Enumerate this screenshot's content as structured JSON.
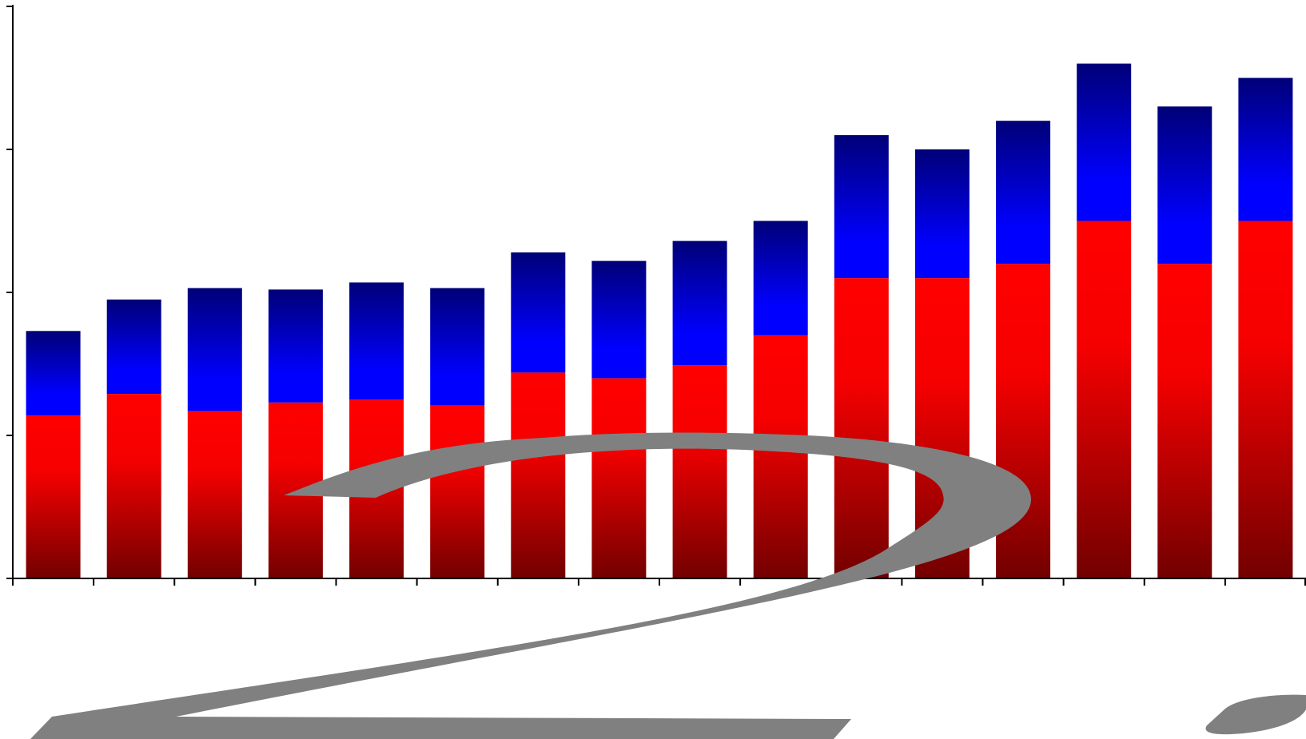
{
  "chart_data": {
    "type": "bar",
    "stacked": true,
    "categories": [
      "",
      "",
      "",
      "",
      "",
      "",
      "",
      "",
      "",
      "",
      "",
      "",
      "",
      "",
      "",
      ""
    ],
    "series": [
      {
        "values": [
          11.4,
          12.9,
          11.7,
          12.3,
          12.5,
          12.1,
          14.4,
          14.0,
          14.9,
          17.0,
          21.0,
          21.0,
          22.0,
          25.0,
          22.0,
          25.0
        ]
      },
      {
        "values": [
          5.9,
          6.6,
          8.6,
          7.9,
          8.2,
          8.2,
          8.4,
          8.2,
          8.7,
          8.0,
          10.0,
          9.0,
          10.0,
          11.0,
          11.0,
          10.0
        ]
      }
    ],
    "ylim": [
      0,
      40
    ],
    "yticks": [
      0,
      10,
      20,
      30,
      40
    ],
    "grid": false,
    "legend": "none",
    "colors": {
      "lower_top": "#ff0000",
      "lower_bottom": "#7a0000",
      "upper_top": "#00007a",
      "upper_bottom": "#0000ff",
      "axis": "#000000",
      "emblem": "#808080"
    }
  }
}
